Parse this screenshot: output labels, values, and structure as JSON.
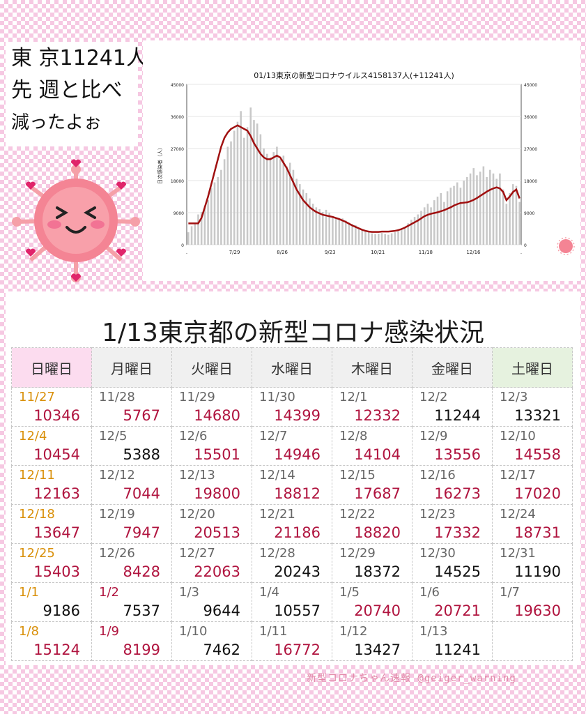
{
  "speech": {
    "line1": "東 京11241人",
    "line2": "先 週と比べ",
    "line3": "減ったよぉ"
  },
  "main_title": "1/13東京都の新型コロナ感染状況",
  "weekdays": [
    "日曜日",
    "月曜日",
    "火曜日",
    "水曜日",
    "木曜日",
    "金曜日",
    "土曜日"
  ],
  "rows": [
    [
      {
        "d": "11/27",
        "v": "10346"
      },
      {
        "d": "11/28",
        "v": "5767"
      },
      {
        "d": "11/29",
        "v": "14680"
      },
      {
        "d": "11/30",
        "v": "14399"
      },
      {
        "d": "12/1",
        "v": "12332"
      },
      {
        "d": "12/2",
        "v": "11244"
      },
      {
        "d": "12/3",
        "v": "13321"
      }
    ],
    [
      {
        "d": "12/4",
        "v": "10454"
      },
      {
        "d": "12/5",
        "v": "5388"
      },
      {
        "d": "12/6",
        "v": "15501"
      },
      {
        "d": "12/7",
        "v": "14946"
      },
      {
        "d": "12/8",
        "v": "14104"
      },
      {
        "d": "12/9",
        "v": "13556"
      },
      {
        "d": "12/10",
        "v": "14558"
      }
    ],
    [
      {
        "d": "12/11",
        "v": "12163"
      },
      {
        "d": "12/12",
        "v": "7044"
      },
      {
        "d": "12/13",
        "v": "19800"
      },
      {
        "d": "12/14",
        "v": "18812"
      },
      {
        "d": "12/15",
        "v": "17687"
      },
      {
        "d": "12/16",
        "v": "16273"
      },
      {
        "d": "12/17",
        "v": "17020"
      }
    ],
    [
      {
        "d": "12/18",
        "v": "13647"
      },
      {
        "d": "12/19",
        "v": "7947"
      },
      {
        "d": "12/20",
        "v": "20513"
      },
      {
        "d": "12/21",
        "v": "21186"
      },
      {
        "d": "12/22",
        "v": "18820"
      },
      {
        "d": "12/23",
        "v": "17332"
      },
      {
        "d": "12/24",
        "v": "18731"
      }
    ],
    [
      {
        "d": "12/25",
        "v": "15403"
      },
      {
        "d": "12/26",
        "v": "8428"
      },
      {
        "d": "12/27",
        "v": "22063"
      },
      {
        "d": "12/28",
        "v": "20243"
      },
      {
        "d": "12/29",
        "v": "18372"
      },
      {
        "d": "12/30",
        "v": "14525"
      },
      {
        "d": "12/31",
        "v": "11190"
      }
    ],
    [
      {
        "d": "1/1",
        "v": "9186"
      },
      {
        "d": "1/2",
        "v": "7537"
      },
      {
        "d": "1/3",
        "v": "9644"
      },
      {
        "d": "1/4",
        "v": "10557"
      },
      {
        "d": "1/5",
        "v": "20740"
      },
      {
        "d": "1/6",
        "v": "20721"
      },
      {
        "d": "1/7",
        "v": "19630"
      }
    ],
    [
      {
        "d": "1/8",
        "v": "15124"
      },
      {
        "d": "1/9",
        "v": "8199"
      },
      {
        "d": "1/10",
        "v": "7462"
      },
      {
        "d": "1/11",
        "v": "16772"
      },
      {
        "d": "1/12",
        "v": "13427"
      },
      {
        "d": "1/13",
        "v": "11241"
      },
      {
        "d": "",
        "v": ""
      }
    ]
  ],
  "colors": {
    "up": "#b0143f",
    "down": "#111111",
    "sunday_date": "#d9900a",
    "bar": "#c8c8c8",
    "line": "#a01010"
  },
  "footer": "新型コロナちゃん速報  @geiger_warning",
  "chart_data": {
    "type": "bar",
    "title": "01/13東京の新型コロナウイルス4158137人(+11241人)",
    "ylabel": "日次感染者（人）",
    "ylim": [
      0,
      45000
    ],
    "yticks": [
      0,
      9000,
      18000,
      27000,
      36000,
      45000
    ],
    "x_ticks": [
      ".",
      "7/29",
      "8/26",
      "9/23",
      "10/21",
      "11/18",
      "12/16",
      "."
    ],
    "grid": true,
    "series": [
      {
        "type": "bar",
        "values": [
          3500,
          5200,
          6000,
          8500,
          9200,
          11000,
          12500,
          16000,
          17500,
          19000,
          21000,
          24000,
          27500,
          29000,
          32000,
          34500,
          37500,
          30000,
          33000,
          38500,
          35000,
          34000,
          31000,
          27000,
          25500,
          24500,
          26000,
          27500,
          24000,
          25000,
          22000,
          23000,
          21000,
          18500,
          17000,
          15500,
          14500,
          13000,
          11500,
          10500,
          10000,
          9200,
          9800,
          9000,
          8000,
          7600,
          7200,
          7400,
          6800,
          6200,
          5800,
          5500,
          4800,
          4300,
          3900,
          3500,
          3200,
          3000,
          3100,
          3300,
          3000,
          2800,
          3200,
          3500,
          3800,
          4200,
          5000,
          6000,
          7000,
          7800,
          8500,
          9500,
          10500,
          11500,
          10500,
          12500,
          13500,
          14500,
          12000,
          15000,
          16000,
          16500,
          17500,
          16000,
          18000,
          19000,
          20000,
          21500,
          19500,
          20500,
          22000,
          19000,
          21000,
          20000,
          18500,
          20000,
          15500,
          11500,
          14500,
          17000,
          16500,
          12000
        ],
        "color": "#c8c8c8"
      },
      {
        "type": "line",
        "values": [
          6000,
          6000,
          6000,
          6000,
          7500,
          10500,
          13500,
          17000,
          20500,
          24000,
          27500,
          30000,
          31500,
          32500,
          33000,
          33500,
          33000,
          32500,
          32000,
          30500,
          28500,
          27000,
          25500,
          24500,
          24000,
          24000,
          24500,
          25000,
          24500,
          23000,
          21500,
          19500,
          17500,
          15500,
          14000,
          12500,
          11500,
          10500,
          9800,
          9200,
          8800,
          8400,
          8200,
          8000,
          7800,
          7500,
          7200,
          6800,
          6400,
          5900,
          5400,
          5000,
          4600,
          4200,
          3900,
          3700,
          3600,
          3600,
          3600,
          3700,
          3700,
          3700,
          3800,
          3900,
          4100,
          4400,
          4800,
          5300,
          5800,
          6300,
          6800,
          7400,
          8000,
          8400,
          8700,
          8900,
          9100,
          9400,
          9700,
          10100,
          10500,
          11000,
          11400,
          11700,
          11800,
          11900,
          12200,
          12600,
          13100,
          13700,
          14300,
          14900,
          15400,
          15800,
          16100,
          15800,
          14800,
          12500,
          13500,
          14800,
          15500,
          13000
        ],
        "color": "#a01010"
      }
    ]
  }
}
